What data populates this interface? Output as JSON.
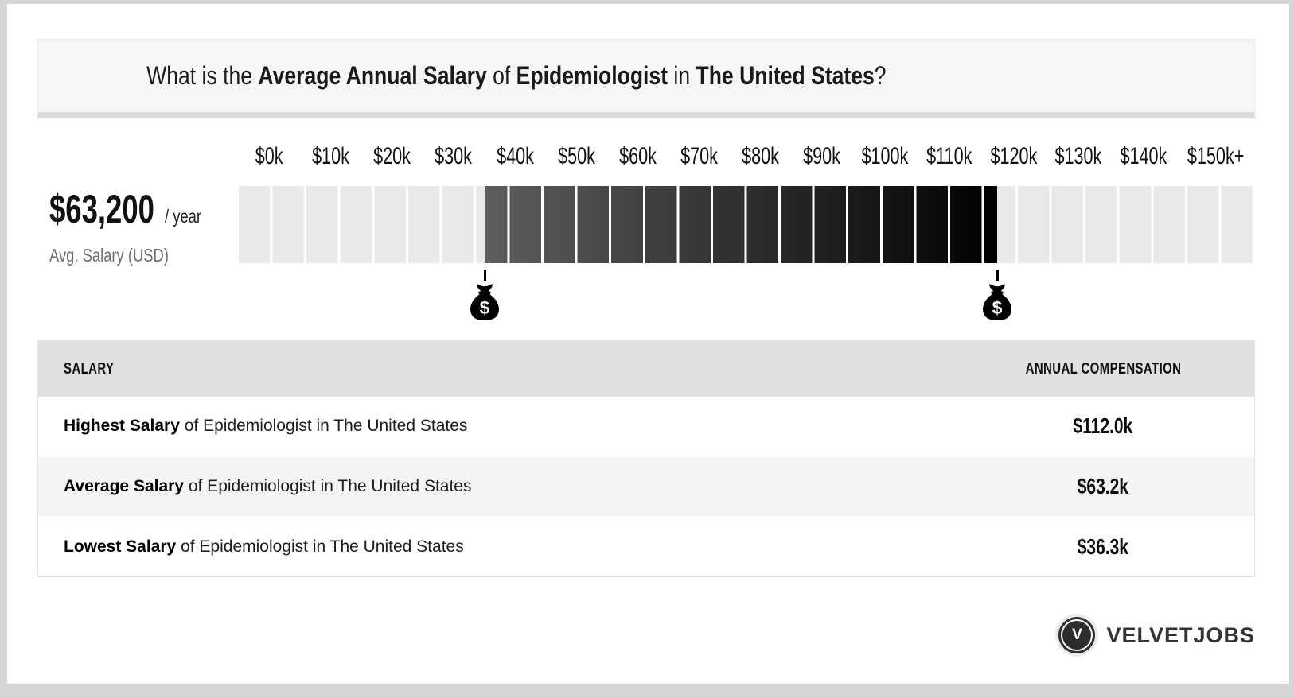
{
  "header": {
    "title_segments": [
      {
        "text": "What is the ",
        "bold": false
      },
      {
        "text": "Average Annual Salary",
        "bold": true
      },
      {
        "text": " of ",
        "bold": false
      },
      {
        "text": "Epidemiologist",
        "bold": true
      },
      {
        "text": " in ",
        "bold": false
      },
      {
        "text": "The United States",
        "bold": true
      },
      {
        "text": "?",
        "bold": false
      }
    ]
  },
  "summary": {
    "amount": "$63,200",
    "per_label": "/ year",
    "caption": "Avg. Salary (USD)"
  },
  "chart_data": {
    "type": "bar",
    "title": "Salary range scale for Epidemiologist in The United States",
    "tick_labels": [
      "$0k",
      "$10k",
      "$20k",
      "$30k",
      "$40k",
      "$50k",
      "$60k",
      "$70k",
      "$80k",
      "$90k",
      "$100k",
      "$110k",
      "$120k",
      "$130k",
      "$140k",
      "$150k+"
    ],
    "axis_min": 0,
    "axis_max": 150000,
    "segment_count": 30,
    "segment_value": 5000,
    "low_value": 36300,
    "high_value": 112000,
    "average_value": 63200,
    "markers": [
      {
        "name": "lowest-salary-marker",
        "value": 36300,
        "glyph": "$"
      },
      {
        "name": "highest-salary-marker",
        "value": 112000,
        "glyph": "$"
      }
    ],
    "colors": {
      "track": "#e9e9e9",
      "highlight_start": "#5e5e5e",
      "highlight_end": "#000000",
      "gap": "#ffffff"
    }
  },
  "table": {
    "header": {
      "salary_label": "SALARY",
      "compensation_label": "ANNUAL COMPENSATION"
    },
    "rows": [
      {
        "bold": "Highest Salary",
        "text": " of Epidemiologist in The United States",
        "value": "$112.0k"
      },
      {
        "bold": "Average Salary",
        "text": " of Epidemiologist in The United States",
        "value": "$63.2k"
      },
      {
        "bold": "Lowest Salary",
        "text": " of Epidemiologist in The United States",
        "value": "$36.3k"
      }
    ]
  },
  "footer": {
    "brand_initial": "V",
    "brand": "VELVETJOBS"
  }
}
